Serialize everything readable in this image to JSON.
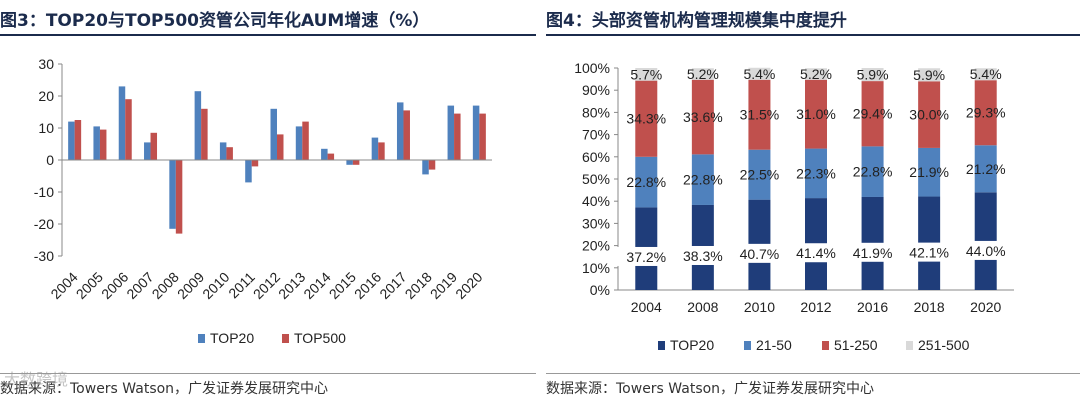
{
  "left_panel": {
    "title": "图3：TOP20与TOP500资管公司年化AUM增速（%）",
    "source": "数据来源：Towers Watson，广发证券发展研究中心"
  },
  "right_panel": {
    "title": "图4：头部资管机构管理规模集中度提升",
    "source": "数据来源：Towers Watson，广发证券发展研究中心"
  },
  "watermark": "大数跨境",
  "colors": {
    "top20_bar": "#4f81bd",
    "top500_bar": "#c0504d",
    "seg_top20": "#1f3d7a",
    "seg_21_50": "#4f81bd",
    "seg_51_250": "#c0504d",
    "seg_251_500": "#d9d9d9",
    "title": "#1b2b4c"
  },
  "chart_data": [
    {
      "type": "bar",
      "title": "TOP20与TOP500资管公司年化AUM增速（%）",
      "categories": [
        "2004",
        "2005",
        "2006",
        "2007",
        "2008",
        "2009",
        "2010",
        "2011",
        "2012",
        "2013",
        "2014",
        "2015",
        "2016",
        "2017",
        "2018",
        "2019",
        "2020"
      ],
      "series": [
        {
          "name": "TOP20",
          "values": [
            12,
            10.5,
            23,
            5.5,
            -21.5,
            21.5,
            5.5,
            -7,
            16,
            10.5,
            3.5,
            -1.5,
            7,
            18,
            -4.5,
            17,
            17
          ]
        },
        {
          "name": "TOP500",
          "values": [
            12.5,
            9.5,
            19,
            8.5,
            -23,
            16,
            4,
            -2,
            8,
            12,
            2,
            -1.5,
            5.5,
            15.5,
            -3,
            14.5,
            14.5
          ]
        }
      ],
      "ylim": [
        -30,
        30
      ],
      "yticks": [
        30,
        20,
        10,
        0,
        -10,
        -20,
        -30
      ],
      "legend": "bottom",
      "xlabel": "",
      "ylabel": ""
    },
    {
      "type": "bar",
      "stacked": true,
      "percent": true,
      "title": "头部资管机构管理规模集中度提升",
      "categories": [
        "2004",
        "2008",
        "2010",
        "2012",
        "2016",
        "2018",
        "2020"
      ],
      "series": [
        {
          "name": "TOP20",
          "values": [
            37.2,
            38.3,
            40.7,
            41.4,
            41.9,
            42.1,
            44.0
          ],
          "labels": [
            "37.2%",
            "38.3%",
            "40.7%",
            "41.4%",
            "41.9%",
            "42.1%",
            "44.0%"
          ]
        },
        {
          "name": "21-50",
          "values": [
            22.8,
            22.8,
            22.5,
            22.3,
            22.8,
            21.9,
            21.2
          ],
          "labels": [
            "22.8%",
            "22.8%",
            "22.5%",
            "22.3%",
            "22.8%",
            "21.9%",
            "21.2%"
          ]
        },
        {
          "name": "51-250",
          "values": [
            34.3,
            33.6,
            31.5,
            31.0,
            29.4,
            30.0,
            29.3
          ],
          "labels": [
            "34.3%",
            "33.6%",
            "31.5%",
            "31.0%",
            "29.4%",
            "30.0%",
            "29.3%"
          ]
        },
        {
          "name": "251-500",
          "values": [
            5.7,
            5.2,
            5.4,
            5.2,
            5.9,
            5.9,
            5.4
          ],
          "labels": [
            "5.7%",
            "5.2%",
            "5.4%",
            "5.2%",
            "5.9%",
            "5.9%",
            "5.4%"
          ]
        }
      ],
      "ylim": [
        0,
        100
      ],
      "yticks": [
        "100%",
        "90%",
        "80%",
        "70%",
        "60%",
        "50%",
        "40%",
        "30%",
        "20%",
        "10%",
        "0%"
      ],
      "legend": "bottom",
      "xlabel": "",
      "ylabel": ""
    }
  ]
}
